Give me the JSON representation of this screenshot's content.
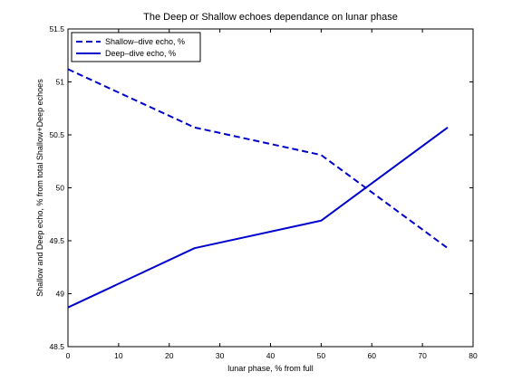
{
  "chart_data": {
    "type": "line",
    "title": "The Deep or Shallow echoes dependance on lunar phase",
    "xlabel": "lunar phase, % from full",
    "ylabel": "Shallow and Deep echo, % from total Shallow+Deep echoes",
    "xlim": [
      0,
      80
    ],
    "ylim": [
      48.5,
      51.5
    ],
    "xticks": [
      0,
      10,
      20,
      30,
      40,
      50,
      60,
      70,
      80
    ],
    "yticks": [
      48.5,
      49,
      49.5,
      50,
      50.5,
      51,
      51.5
    ],
    "xtick_labels": [
      "0",
      "10",
      "20",
      "30",
      "40",
      "50",
      "60",
      "70",
      "80"
    ],
    "ytick_labels": [
      "48.5",
      "49",
      "49.5",
      "50",
      "50.5",
      "51",
      "51.5"
    ],
    "grid": false,
    "legend_position": "top-left",
    "x": [
      0,
      25,
      50,
      75
    ],
    "series": [
      {
        "name": "Shallow–dive echo, %",
        "values": [
          51.12,
          50.57,
          50.31,
          49.43
        ],
        "color": "#0000cc",
        "style": "dashed"
      },
      {
        "name": "Deep–dive echo, %",
        "values": [
          48.87,
          49.43,
          49.69,
          50.57
        ],
        "color": "#0000cc",
        "style": "solid"
      }
    ]
  }
}
